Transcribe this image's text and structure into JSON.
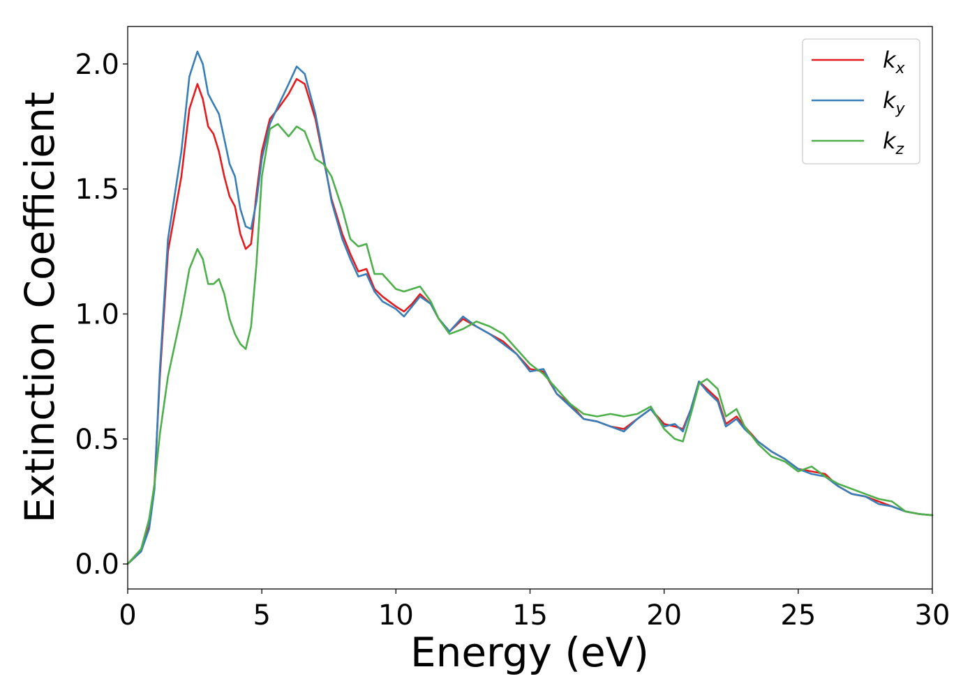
{
  "chart_data": {
    "type": "line",
    "xlabel": "Energy (eV)",
    "ylabel": "Extinction Coefficient",
    "xlim": [
      0,
      30
    ],
    "ylim": [
      -0.1,
      2.15
    ],
    "xticks": [
      0,
      5,
      10,
      15,
      20,
      25,
      30
    ],
    "xtick_labels": [
      "0",
      "5",
      "10",
      "15",
      "20",
      "25",
      "30"
    ],
    "yticks": [
      0.0,
      0.5,
      1.0,
      1.5,
      2.0
    ],
    "ytick_labels": [
      "0.0",
      "0.5",
      "1.0",
      "1.5",
      "2.0"
    ],
    "grid": false,
    "legend_position": "top-right",
    "series": [
      {
        "name": "k",
        "sub": "x",
        "color": "#e41a1c",
        "x": [
          0,
          0.5,
          0.8,
          1.0,
          1.2,
          1.5,
          2.0,
          2.3,
          2.6,
          2.8,
          3.0,
          3.2,
          3.4,
          3.6,
          3.8,
          4.0,
          4.2,
          4.4,
          4.6,
          4.8,
          5.0,
          5.3,
          5.6,
          6.0,
          6.3,
          6.6,
          7.0,
          7.3,
          7.6,
          8.0,
          8.3,
          8.6,
          8.9,
          9.2,
          9.5,
          10.0,
          10.3,
          10.6,
          10.9,
          11.3,
          11.6,
          12.0,
          12.5,
          13.0,
          13.5,
          14.0,
          14.5,
          15.0,
          15.5,
          16.0,
          16.5,
          17.0,
          17.5,
          18.0,
          18.5,
          19.0,
          19.5,
          20.0,
          20.4,
          20.7,
          21.0,
          21.3,
          21.6,
          22.0,
          22.3,
          22.7,
          23.0,
          23.5,
          24.0,
          24.5,
          25.0,
          25.5,
          26.0,
          26.5,
          27.0,
          27.5,
          28.0,
          28.5,
          29.0,
          29.5,
          30.0
        ],
        "y": [
          0.0,
          0.05,
          0.15,
          0.32,
          0.75,
          1.25,
          1.55,
          1.82,
          1.92,
          1.86,
          1.75,
          1.72,
          1.65,
          1.55,
          1.47,
          1.43,
          1.32,
          1.26,
          1.28,
          1.48,
          1.65,
          1.78,
          1.82,
          1.88,
          1.94,
          1.92,
          1.78,
          1.62,
          1.46,
          1.32,
          1.24,
          1.17,
          1.18,
          1.1,
          1.07,
          1.03,
          1.01,
          1.04,
          1.08,
          1.04,
          0.98,
          0.93,
          0.98,
          0.95,
          0.92,
          0.89,
          0.84,
          0.78,
          0.77,
          0.68,
          0.64,
          0.58,
          0.57,
          0.55,
          0.54,
          0.58,
          0.62,
          0.56,
          0.55,
          0.54,
          0.62,
          0.73,
          0.7,
          0.66,
          0.56,
          0.59,
          0.55,
          0.49,
          0.45,
          0.42,
          0.38,
          0.37,
          0.36,
          0.31,
          0.28,
          0.27,
          0.25,
          0.23,
          0.21,
          0.2,
          0.195
        ]
      },
      {
        "name": "k",
        "sub": "y",
        "color": "#377eb8",
        "x": [
          0,
          0.5,
          0.8,
          1.0,
          1.2,
          1.5,
          2.0,
          2.3,
          2.6,
          2.8,
          3.0,
          3.2,
          3.4,
          3.6,
          3.8,
          4.0,
          4.2,
          4.4,
          4.6,
          4.8,
          5.0,
          5.3,
          5.6,
          6.0,
          6.3,
          6.6,
          7.0,
          7.3,
          7.6,
          8.0,
          8.3,
          8.6,
          8.9,
          9.2,
          9.5,
          10.0,
          10.3,
          10.6,
          10.9,
          11.3,
          11.6,
          12.0,
          12.5,
          13.0,
          13.5,
          14.0,
          14.5,
          15.0,
          15.5,
          16.0,
          16.5,
          17.0,
          17.5,
          18.0,
          18.5,
          19.0,
          19.5,
          20.0,
          20.4,
          20.7,
          21.0,
          21.3,
          21.6,
          22.0,
          22.3,
          22.7,
          23.0,
          23.5,
          24.0,
          24.5,
          25.0,
          25.5,
          26.0,
          26.5,
          27.0,
          27.5,
          28.0,
          28.5,
          29.0,
          29.5,
          30.0
        ],
        "y": [
          0.0,
          0.05,
          0.14,
          0.3,
          0.78,
          1.3,
          1.65,
          1.95,
          2.05,
          2.0,
          1.88,
          1.84,
          1.8,
          1.7,
          1.6,
          1.55,
          1.42,
          1.35,
          1.34,
          1.45,
          1.62,
          1.76,
          1.83,
          1.92,
          1.99,
          1.96,
          1.8,
          1.63,
          1.45,
          1.3,
          1.22,
          1.15,
          1.16,
          1.09,
          1.05,
          1.02,
          0.99,
          1.03,
          1.07,
          1.04,
          0.98,
          0.93,
          0.99,
          0.95,
          0.92,
          0.88,
          0.84,
          0.77,
          0.78,
          0.68,
          0.63,
          0.58,
          0.57,
          0.55,
          0.53,
          0.58,
          0.62,
          0.55,
          0.56,
          0.53,
          0.62,
          0.73,
          0.69,
          0.65,
          0.55,
          0.58,
          0.54,
          0.49,
          0.45,
          0.42,
          0.38,
          0.36,
          0.35,
          0.31,
          0.28,
          0.27,
          0.24,
          0.23,
          0.21,
          0.2,
          0.195
        ]
      },
      {
        "name": "k",
        "sub": "z",
        "color": "#4daf4a",
        "x": [
          0,
          0.5,
          0.8,
          1.0,
          1.2,
          1.5,
          2.0,
          2.3,
          2.6,
          2.8,
          3.0,
          3.2,
          3.4,
          3.6,
          3.8,
          4.0,
          4.2,
          4.4,
          4.6,
          4.8,
          5.0,
          5.3,
          5.6,
          6.0,
          6.3,
          6.6,
          7.0,
          7.3,
          7.6,
          8.0,
          8.3,
          8.6,
          8.9,
          9.2,
          9.5,
          10.0,
          10.3,
          10.6,
          10.9,
          11.3,
          11.6,
          12.0,
          12.5,
          13.0,
          13.5,
          14.0,
          14.5,
          15.0,
          15.5,
          16.0,
          16.5,
          17.0,
          17.5,
          18.0,
          18.5,
          19.0,
          19.5,
          20.0,
          20.4,
          20.7,
          21.0,
          21.3,
          21.6,
          22.0,
          22.3,
          22.7,
          23.0,
          23.5,
          24.0,
          24.5,
          25.0,
          25.5,
          26.0,
          26.5,
          27.0,
          27.5,
          28.0,
          28.5,
          29.0,
          29.5,
          30.0
        ],
        "y": [
          0.0,
          0.06,
          0.18,
          0.32,
          0.52,
          0.75,
          1.0,
          1.18,
          1.26,
          1.22,
          1.12,
          1.12,
          1.14,
          1.08,
          0.98,
          0.92,
          0.88,
          0.86,
          0.95,
          1.2,
          1.55,
          1.74,
          1.76,
          1.71,
          1.75,
          1.73,
          1.62,
          1.6,
          1.55,
          1.42,
          1.3,
          1.27,
          1.28,
          1.16,
          1.16,
          1.1,
          1.09,
          1.1,
          1.11,
          1.05,
          0.98,
          0.92,
          0.94,
          0.97,
          0.95,
          0.92,
          0.86,
          0.8,
          0.76,
          0.7,
          0.64,
          0.6,
          0.59,
          0.6,
          0.59,
          0.6,
          0.63,
          0.54,
          0.5,
          0.49,
          0.6,
          0.72,
          0.74,
          0.7,
          0.59,
          0.62,
          0.55,
          0.48,
          0.43,
          0.41,
          0.37,
          0.39,
          0.35,
          0.32,
          0.3,
          0.28,
          0.26,
          0.25,
          0.21,
          0.2,
          0.195
        ]
      }
    ]
  }
}
